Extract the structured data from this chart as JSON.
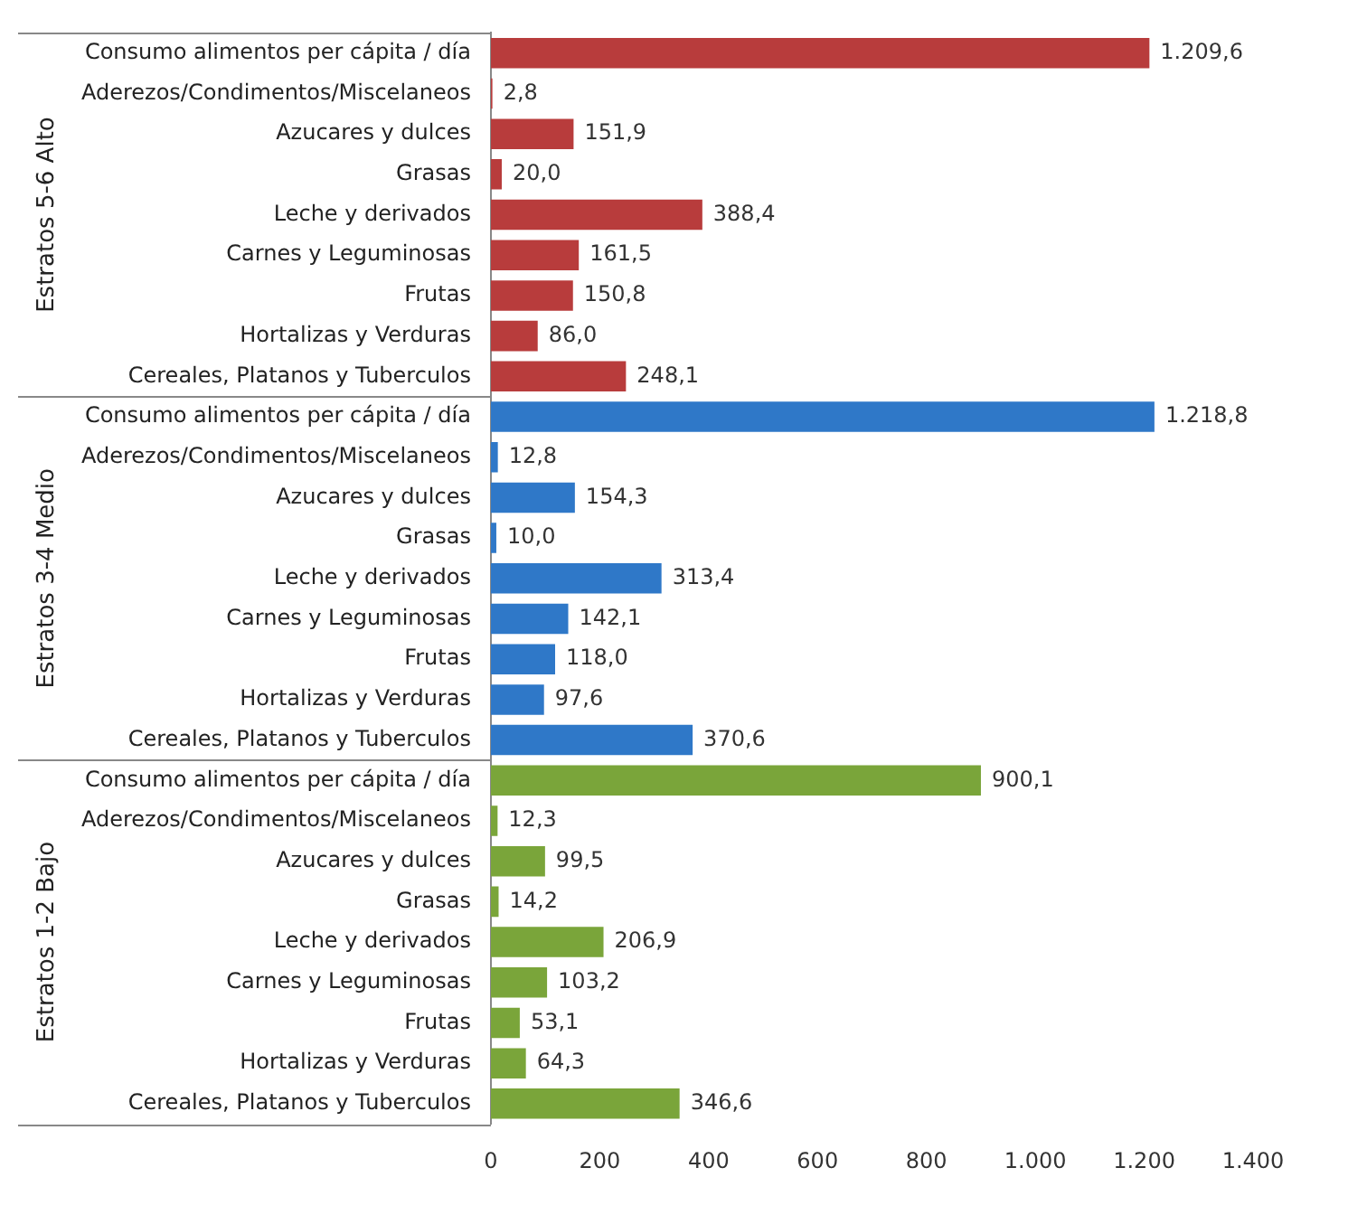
{
  "chart_data": {
    "type": "bar",
    "orientation": "horizontal",
    "categories": [
      "Consumo alimentos per cápita / día",
      "Aderezos/Condimentos/Miscelaneos",
      "Azucares y dulces",
      "Grasas",
      "Leche y derivados",
      "Carnes y Leguminosas",
      "Frutas",
      "Hortalizas y Verduras",
      "Cereales, Platanos y Tuberculos",
      "Consumo alimentos per cápita / día",
      "Aderezos/Condimentos/Miscelaneos",
      "Azucares y dulces",
      "Grasas",
      "Leche y derivados",
      "Carnes y Leguminosas",
      "Frutas",
      "Hortalizas y Verduras",
      "Cereales, Platanos y Tuberculos",
      "Consumo alimentos per cápita / día",
      "Aderezos/Condimentos/Miscelaneos",
      "Azucares y dulces",
      "Grasas",
      "Leche y derivados",
      "Carnes y Leguminosas",
      "Frutas",
      "Hortalizas y Verduras",
      "Cereales, Platanos y Tuberculos"
    ],
    "values": [
      1209.6,
      2.8,
      151.9,
      20.0,
      388.4,
      161.5,
      150.8,
      86.0,
      248.1,
      1218.8,
      12.8,
      154.3,
      10.0,
      313.4,
      142.1,
      118.0,
      97.6,
      370.6,
      900.1,
      12.3,
      99.5,
      14.2,
      206.9,
      103.2,
      53.1,
      64.3,
      346.6
    ],
    "value_labels": [
      "1.209,6",
      "2,8",
      "151,9",
      "20,0",
      "388,4",
      "161,5",
      "150,8",
      "86,0",
      "248,1",
      "1.218,8",
      "12,8",
      "154,3",
      "10,0",
      "313,4",
      "142,1",
      "118,0",
      "97,6",
      "370,6",
      "900,1",
      "12,3",
      "99,5",
      "14,2",
      "206,9",
      "103,2",
      "53,1",
      "64,3",
      "346,6"
    ],
    "colors": [
      "#b83c3c",
      "#b83c3c",
      "#b83c3c",
      "#b83c3c",
      "#b83c3c",
      "#b83c3c",
      "#b83c3c",
      "#b83c3c",
      "#b83c3c",
      "#2f78c8",
      "#2f78c8",
      "#2f78c8",
      "#2f78c8",
      "#2f78c8",
      "#2f78c8",
      "#2f78c8",
      "#2f78c8",
      "#2f78c8",
      "#7aa53a",
      "#7aa53a",
      "#7aa53a",
      "#7aa53a",
      "#7aa53a",
      "#7aa53a",
      "#7aa53a",
      "#7aa53a",
      "#7aa53a"
    ],
    "annotations": [
      "Estratos 5-6 Alto",
      "Estratos 3-4 Medio",
      "Estratos 1-2 Bajo"
    ],
    "xlim": [
      0,
      1400
    ],
    "xticks": [
      0,
      200,
      400,
      600,
      800,
      {
        "value": 1000,
        "label": "1.000"
      },
      {
        "value": 1200,
        "label": "1.200"
      },
      {
        "value": 1400,
        "label": "1.400"
      }
    ],
    "grid": false,
    "legend": false
  }
}
